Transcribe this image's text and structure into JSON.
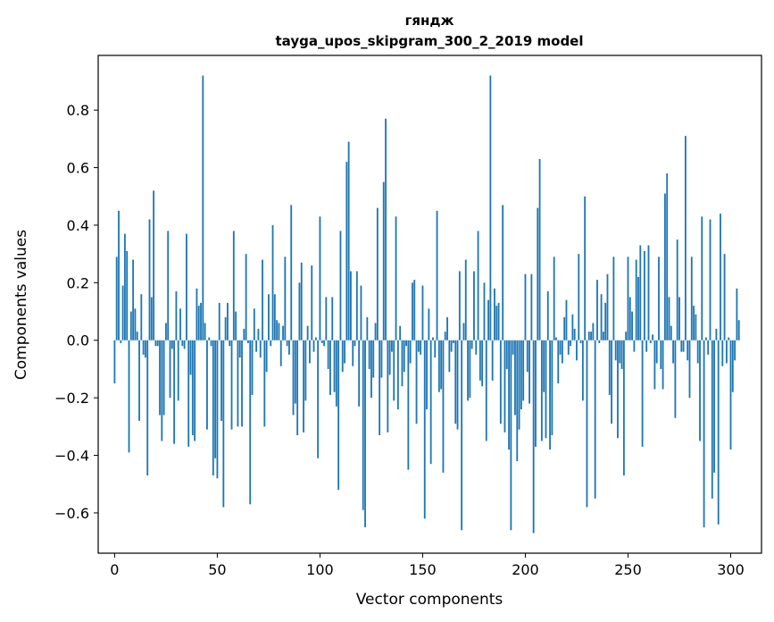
{
  "chart_data": {
    "type": "bar",
    "title": "гяндж",
    "subtitle": "tayga_upos_skipgram_300_2_2019 model",
    "xlabel": "Vector components",
    "ylabel": "Components values",
    "xlim": [
      -8,
      315
    ],
    "ylim": [
      -0.74,
      0.99
    ],
    "xticks": [
      0,
      50,
      100,
      150,
      200,
      250,
      300
    ],
    "yticks": [
      -0.6,
      -0.4,
      -0.2,
      0.0,
      0.2,
      0.4,
      0.6,
      0.8
    ],
    "xtick_labels": [
      "0",
      "50",
      "100",
      "150",
      "200",
      "250",
      "300"
    ],
    "ytick_labels": [
      "−0.6",
      "−0.4",
      "−0.2",
      "0.0",
      "0.2",
      "0.4",
      "0.6",
      "0.8"
    ],
    "bar_color": "#1f77b4",
    "grid": false,
    "legend": "none",
    "x_start": 0,
    "values": [
      -0.15,
      0.29,
      0.45,
      -0.01,
      0.19,
      0.37,
      0.31,
      -0.39,
      0.1,
      0.28,
      0.11,
      0.03,
      -0.28,
      0.16,
      -0.05,
      -0.06,
      -0.47,
      0.42,
      0.15,
      0.52,
      -0.02,
      -0.02,
      -0.26,
      -0.35,
      -0.26,
      0.06,
      0.38,
      -0.2,
      -0.03,
      -0.36,
      0.17,
      -0.21,
      0.11,
      -0.02,
      -0.03,
      0.37,
      -0.37,
      -0.12,
      -0.33,
      -0.35,
      0.18,
      0.12,
      0.13,
      0.92,
      0.06,
      -0.31,
      0.01,
      -0.02,
      -0.47,
      -0.41,
      -0.48,
      0.13,
      -0.28,
      -0.58,
      0.08,
      0.13,
      -0.02,
      -0.31,
      0.38,
      0.1,
      -0.3,
      -0.06,
      -0.3,
      0.04,
      0.3,
      -0.01,
      -0.57,
      -0.19,
      0.11,
      -0.04,
      0.04,
      -0.06,
      0.28,
      -0.3,
      -0.11,
      0.16,
      -0.02,
      0.4,
      0.16,
      0.07,
      0.06,
      -0.09,
      0.05,
      0.29,
      -0.02,
      -0.05,
      0.47,
      -0.26,
      -0.22,
      -0.33,
      0.2,
      0.27,
      -0.32,
      -0.21,
      0.05,
      -0.08,
      0.26,
      -0.04,
      0.01,
      -0.41,
      0.43,
      -0.01,
      -0.02,
      0.15,
      -0.1,
      -0.19,
      0.15,
      -0.18,
      -0.23,
      -0.52,
      0.38,
      -0.11,
      -0.08,
      0.62,
      0.69,
      0.24,
      -0.09,
      -0.02,
      0.24,
      -0.23,
      0.19,
      -0.59,
      -0.65,
      0.08,
      -0.1,
      -0.2,
      -0.13,
      0.06,
      0.46,
      -0.33,
      -0.13,
      0.55,
      0.77,
      -0.32,
      -0.12,
      -0.04,
      -0.21,
      0.43,
      -0.24,
      0.05,
      -0.16,
      -0.11,
      -0.02,
      -0.45,
      -0.08,
      0.2,
      0.21,
      -0.29,
      -0.04,
      -0.05,
      0.19,
      -0.62,
      -0.24,
      0.11,
      -0.43,
      0.01,
      -0.06,
      0.45,
      -0.18,
      -0.17,
      -0.46,
      0.03,
      0.08,
      -0.11,
      -0.04,
      -0.01,
      -0.29,
      -0.31,
      0.24,
      -0.66,
      0.06,
      0.28,
      -0.21,
      -0.2,
      -0.03,
      0.24,
      -0.05,
      0.38,
      -0.14,
      -0.16,
      0.2,
      -0.35,
      0.14,
      0.92,
      -0.14,
      0.18,
      0.12,
      0.13,
      -0.29,
      0.47,
      -0.32,
      -0.1,
      -0.38,
      -0.66,
      -0.05,
      -0.26,
      -0.42,
      -0.31,
      -0.24,
      -0.21,
      0.23,
      -0.11,
      -0.22,
      0.23,
      -0.67,
      -0.37,
      0.46,
      0.63,
      -0.35,
      -0.18,
      -0.34,
      0.17,
      -0.38,
      -0.33,
      0.29,
      0.01,
      -0.15,
      -0.05,
      -0.08,
      0.08,
      0.14,
      -0.05,
      -0.02,
      0.09,
      0.04,
      -0.07,
      0.3,
      -0.01,
      -0.21,
      0.5,
      -0.58,
      0.03,
      0.03,
      0.06,
      -0.55,
      0.21,
      -0.01,
      0.16,
      0.03,
      0.13,
      0.23,
      -0.19,
      -0.29,
      0.29,
      -0.07,
      -0.34,
      -0.08,
      -0.1,
      -0.47,
      0.03,
      0.29,
      0.15,
      0.1,
      -0.04,
      0.28,
      0.22,
      0.33,
      -0.37,
      0.31,
      -0.04,
      0.33,
      -0.01,
      0.02,
      -0.17,
      -0.08,
      0.29,
      -0.1,
      -0.17,
      0.51,
      0.58,
      0.15,
      0.05,
      -0.08,
      -0.27,
      0.35,
      0.15,
      -0.04,
      -0.04,
      0.71,
      -0.07,
      -0.2,
      0.29,
      0.12,
      0.09,
      -0.08,
      -0.35,
      0.43,
      -0.65,
      0.01,
      -0.05,
      0.42,
      -0.55,
      -0.46,
      0.04,
      -0.64,
      0.44,
      -0.09,
      0.3,
      -0.08,
      0.01,
      -0.38,
      -0.18,
      -0.07,
      0.18,
      0.07
    ]
  }
}
